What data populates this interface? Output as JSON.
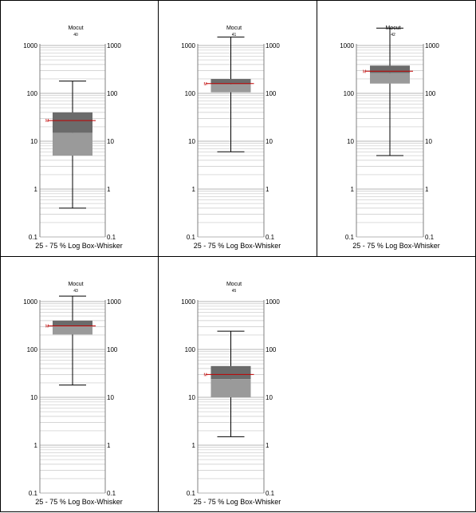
{
  "colors": {
    "box_upper": "#6b6b6b",
    "box_lower": "#9a9a9a",
    "mean_line": "#c00000",
    "grid": "#c8c8c8",
    "axis": "#808080",
    "whisker": "#000000",
    "frame": "#000000"
  },
  "chart_data": [
    {
      "type": "box",
      "title": "Mocut",
      "subtitle": "40",
      "xlabel": "25 - 75 % Log Box-Whisker",
      "yscale": "log",
      "ylim": [
        0.1,
        1000
      ],
      "ticks": [
        "0.1",
        "1",
        "10",
        "100",
        "1000"
      ],
      "mean_marker": "M",
      "box": {
        "min": 0.4,
        "q1": 5,
        "median": 15,
        "q3": 40,
        "max": 180,
        "mean": 27
      }
    },
    {
      "type": "box",
      "title": "Mocut",
      "subtitle": "41",
      "xlabel": "25 - 75 % Log Box-Whisker",
      "yscale": "log",
      "ylim": [
        0.1,
        1000
      ],
      "ticks": [
        "0.1",
        "1",
        "10",
        "100",
        "1000"
      ],
      "mean_marker": "M",
      "box": {
        "min": 6,
        "q1": 105,
        "median": 155,
        "q3": 200,
        "max": 1500,
        "mean": 160
      }
    },
    {
      "type": "box",
      "title": "Mocut",
      "subtitle": "42",
      "xlabel": "25 - 75 % Log Box-Whisker",
      "yscale": "log",
      "ylim": [
        0.1,
        1000
      ],
      "ticks": [
        "0.1",
        "1",
        "10",
        "100",
        "1000"
      ],
      "mean_marker": "M",
      "box": {
        "min": 5,
        "q1": 160,
        "median": 265,
        "q3": 380,
        "max": 2300,
        "mean": 290
      }
    },
    {
      "type": "box",
      "title": "Mocut",
      "subtitle": "43",
      "xlabel": "25 - 75 % Log Box-Whisker",
      "yscale": "log",
      "ylim": [
        0.1,
        1000
      ],
      "ticks": [
        "0.1",
        "1",
        "10",
        "100",
        "1000"
      ],
      "mean_marker": "M",
      "box": {
        "min": 18,
        "q1": 205,
        "median": 310,
        "q3": 400,
        "max": 1300,
        "mean": 310
      }
    },
    {
      "type": "box",
      "title": "Mocut",
      "subtitle": "45",
      "xlabel": "25 - 75 % Log Box-Whisker",
      "yscale": "log",
      "ylim": [
        0.1,
        1000
      ],
      "ticks": [
        "0.1",
        "1",
        "10",
        "100",
        "1000"
      ],
      "mean_marker": "M",
      "box": {
        "min": 1.5,
        "q1": 10,
        "median": 24,
        "q3": 45,
        "max": 240,
        "mean": 30
      }
    }
  ]
}
